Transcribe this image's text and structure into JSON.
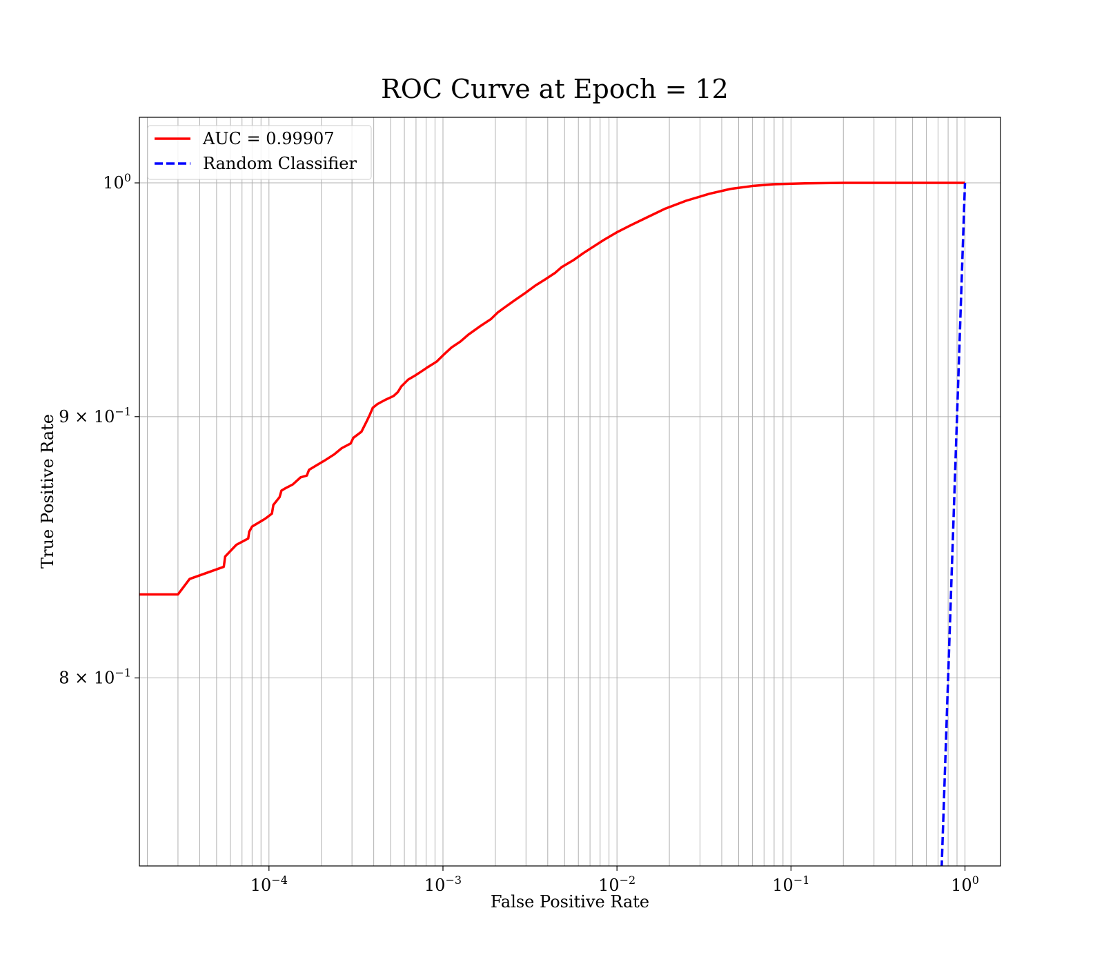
{
  "chart_data": {
    "type": "line",
    "title": "ROC Curve at Epoch = 12",
    "xlabel": "False Positive Rate",
    "ylabel": "True Positive Rate",
    "xscale": "log",
    "yscale": "log",
    "xlim": [
      1.8e-05,
      1.6
    ],
    "ylim": [
      0.735,
      1.03
    ],
    "grid": "both major and minor",
    "legend_position": "upper-left",
    "x_ticks": [
      {
        "base": "10",
        "exp": "−4",
        "value": 0.0001
      },
      {
        "base": "10",
        "exp": "−3",
        "value": 0.001
      },
      {
        "base": "10",
        "exp": "−2",
        "value": 0.01
      },
      {
        "base": "10",
        "exp": "−1",
        "value": 0.1
      },
      {
        "base": "10",
        "exp": "0",
        "value": 1
      }
    ],
    "y_ticks": [
      {
        "base": "10",
        "exp": "0",
        "value": 1.0
      },
      {
        "base": "9 × 10",
        "exp": "−1",
        "value": 0.9
      },
      {
        "base": "8 × 10",
        "exp": "−1",
        "value": 0.8
      }
    ],
    "series": [
      {
        "name": "AUC = 0.99907",
        "color": "#ff0000",
        "style": "solid",
        "x": [
          1.8e-05,
          3e-05,
          3.5e-05,
          5.5e-05,
          5.6e-05,
          6.5e-05,
          7.6e-05,
          7.7e-05,
          8e-05,
          9.5e-05,
          0.000104,
          0.000106,
          0.000115,
          0.000118,
          0.000125,
          0.000137,
          0.000152,
          0.000165,
          0.00017,
          0.000188,
          0.000207,
          0.000237,
          0.000262,
          0.000295,
          0.000305,
          0.00034,
          0.000365,
          0.00038,
          0.000395,
          0.00042,
          0.000465,
          0.00052,
          0.00055,
          0.000577,
          0.00063,
          0.00069,
          0.00074,
          0.00081,
          0.00092,
          0.00101,
          0.00112,
          0.00126,
          0.0014,
          0.00164,
          0.00189,
          0.00206,
          0.00227,
          0.0026,
          0.003,
          0.0034,
          0.0039,
          0.0044,
          0.0048,
          0.0056,
          0.0064,
          0.0074,
          0.0084,
          0.01,
          0.012,
          0.015,
          0.019,
          0.025,
          0.034,
          0.045,
          0.06,
          0.08,
          0.12,
          0.2,
          0.5,
          1.0
        ],
        "y": [
          0.8307,
          0.8307,
          0.8365,
          0.8411,
          0.845,
          0.8495,
          0.8519,
          0.8545,
          0.8565,
          0.8595,
          0.8615,
          0.8649,
          0.8679,
          0.8705,
          0.8715,
          0.8729,
          0.8757,
          0.8764,
          0.8787,
          0.8805,
          0.8822,
          0.8848,
          0.8873,
          0.8892,
          0.8914,
          0.8939,
          0.8982,
          0.9008,
          0.9036,
          0.9051,
          0.9068,
          0.9084,
          0.91,
          0.9124,
          0.9151,
          0.9168,
          0.9182,
          0.9201,
          0.9226,
          0.9255,
          0.9285,
          0.931,
          0.9339,
          0.9375,
          0.9405,
          0.9432,
          0.9455,
          0.9486,
          0.9518,
          0.9548,
          0.9576,
          0.9602,
          0.9627,
          0.9657,
          0.9688,
          0.9719,
          0.9746,
          0.978,
          0.9811,
          0.9847,
          0.9885,
          0.992,
          0.9951,
          0.9973,
          0.9986,
          0.9994,
          0.9998,
          1.0,
          1.0,
          1.0
        ]
      },
      {
        "name": "Random Classifier",
        "color": "#0000ff",
        "style": "dashed",
        "x": [
          0.7,
          0.75,
          0.8,
          0.85,
          0.9,
          0.95,
          1.0
        ],
        "y": [
          0.7,
          0.75,
          0.8,
          0.85,
          0.9,
          0.95,
          1.0
        ]
      }
    ]
  }
}
